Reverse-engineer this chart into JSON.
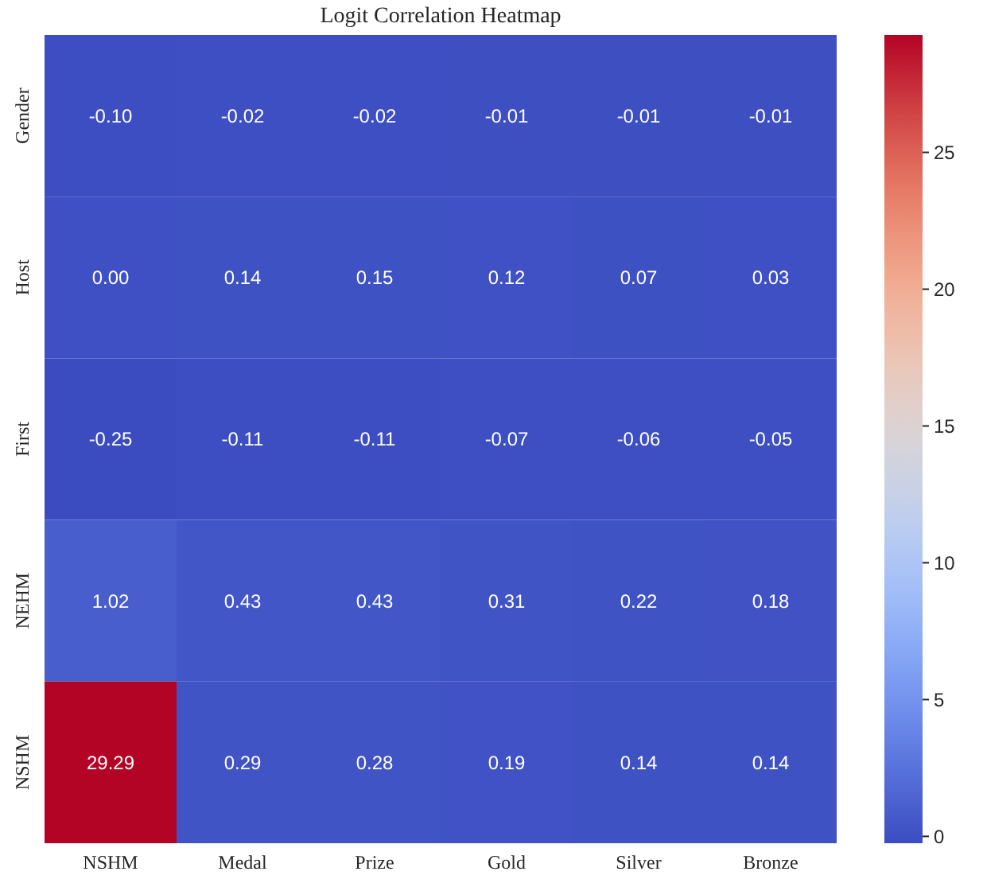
{
  "chart_data": {
    "type": "heatmap",
    "title": "Logit Correlation Heatmap",
    "categories": [
      "NSHM",
      "Medal",
      "Prize",
      "Gold",
      "Silver",
      "Bronze"
    ],
    "y_categories": [
      "Gender",
      "Host",
      "First",
      "NEHM",
      "NSHM"
    ],
    "cells": [
      [
        -0.1,
        -0.02,
        -0.02,
        -0.01,
        -0.01,
        -0.01
      ],
      [
        0.0,
        0.14,
        0.15,
        0.12,
        0.07,
        0.03
      ],
      [
        -0.25,
        -0.11,
        -0.11,
        -0.07,
        -0.06,
        -0.05
      ],
      [
        1.02,
        0.43,
        0.43,
        0.31,
        0.22,
        0.18
      ],
      [
        29.29,
        0.29,
        0.28,
        0.19,
        0.14,
        0.14
      ]
    ],
    "cell_labels": [
      [
        "-0.10",
        "-0.02",
        "-0.02",
        "-0.01",
        "-0.01",
        "-0.01"
      ],
      [
        "0.00",
        "0.14",
        "0.15",
        "0.12",
        "0.07",
        "0.03"
      ],
      [
        "-0.25",
        "-0.11",
        "-0.11",
        "-0.07",
        "-0.06",
        "-0.05"
      ],
      [
        "1.02",
        "0.43",
        "0.43",
        "0.31",
        "0.22",
        "0.18"
      ],
      [
        "29.29",
        "0.29",
        "0.28",
        "0.19",
        "0.14",
        "0.14"
      ]
    ],
    "clim": [
      -0.25,
      29.29
    ],
    "cticks": [
      0,
      5,
      10,
      15,
      20,
      25
    ],
    "data_labels": true
  }
}
